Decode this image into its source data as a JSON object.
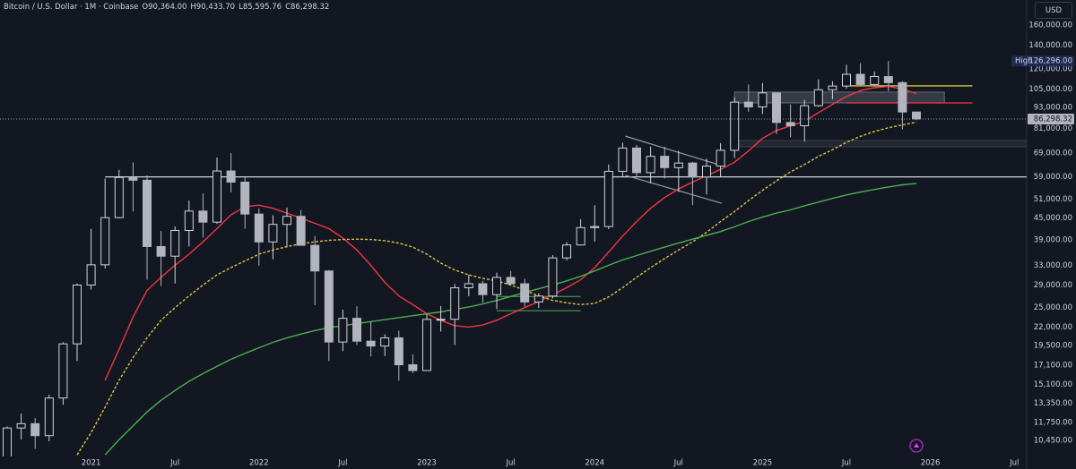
{
  "header": {
    "symbol": "Bitcoin / U.S. Dollar · 1M · Coinbase",
    "o_key": "O",
    "o": "90,364.00",
    "h_key": "H",
    "h": "90,433.70",
    "l_key": "L",
    "l": "85,595.76",
    "c_key": "C",
    "c": "86,298.32",
    "currency": "USD"
  },
  "chart_data": {
    "type": "candlestick",
    "log_scale": true,
    "grid": false,
    "categories": [
      null,
      null,
      null,
      null,
      null,
      null,
      "2021",
      null,
      null,
      null,
      null,
      null,
      "Jul",
      null,
      null,
      null,
      null,
      null,
      "2022",
      null,
      null,
      null,
      null,
      null,
      "Jul",
      null,
      null,
      null,
      null,
      null,
      "2023",
      null,
      null,
      null,
      null,
      null,
      "Jul",
      null,
      null,
      null,
      null,
      null,
      "2024",
      null,
      null,
      null,
      null,
      null,
      "Jul",
      null,
      null,
      null,
      null,
      null,
      "2025",
      null,
      null,
      null,
      null,
      null,
      "Jul",
      null,
      null,
      null,
      null,
      null,
      "2026",
      null,
      null,
      null,
      null,
      null,
      "Jul"
    ],
    "open": [
      9135,
      11335,
      11660,
      10780,
      13800,
      19700,
      28990,
      33110,
      45140,
      58790,
      57720,
      37330,
      35040,
      41490,
      47130,
      43830,
      61320,
      57000,
      46220,
      38480,
      43180,
      45530,
      37640,
      31790,
      19940,
      23300,
      20050,
      19420,
      20490,
      17170,
      16530,
      23130,
      23150,
      28470,
      29250,
      27220,
      30480,
      29230,
      25940,
      26970,
      34650,
      37720,
      42280,
      42580,
      61200,
      71330,
      60670,
      67530,
      62680,
      64620,
      58970,
      63330,
      70250,
      96400,
      93430,
      102430,
      84350,
      82550,
      94200,
      104600,
      107170,
      115760,
      108250,
      114050,
      109580,
      90364,
      null,
      null,
      null,
      null,
      null,
      null,
      null
    ],
    "high": [
      11450,
      12470,
      12090,
      14100,
      19900,
      29300,
      41950,
      58370,
      61790,
      64900,
      59600,
      41330,
      42600,
      50500,
      52920,
      67000,
      69000,
      59050,
      47990,
      45850,
      48240,
      47440,
      40020,
      31980,
      24670,
      25200,
      22800,
      20990,
      21480,
      18390,
      23960,
      25250,
      29190,
      31000,
      29820,
      31430,
      31800,
      30200,
      27490,
      35290,
      38420,
      44730,
      48970,
      64000,
      73800,
      72800,
      71980,
      71970,
      70010,
      65110,
      66500,
      73620,
      99600,
      108300,
      109350,
      102500,
      95000,
      97900,
      111980,
      110600,
      123200,
      124500,
      117900,
      126296,
      110600,
      90433.7,
      null,
      null,
      null,
      null,
      null,
      null,
      null
    ],
    "low": [
      8990,
      10520,
      9880,
      10380,
      13200,
      17600,
      28130,
      32300,
      44950,
      47000,
      30000,
      28800,
      29280,
      37330,
      39600,
      43300,
      53250,
      41950,
      32930,
      34320,
      37160,
      37570,
      25400,
      17600,
      18780,
      19550,
      18150,
      18190,
      15480,
      16260,
      16500,
      21350,
      19550,
      26950,
      25810,
      24750,
      28860,
      25170,
      24920,
      26550,
      34110,
      37620,
      38550,
      41880,
      59000,
      59100,
      56550,
      58400,
      53500,
      49000,
      52550,
      58870,
      66800,
      90500,
      89160,
      78170,
      76600,
      74420,
      93400,
      98200,
      105300,
      107300,
      107250,
      103530,
      80600,
      85595.76,
      null,
      null,
      null,
      null,
      null,
      null,
      null
    ],
    "close": [
      11335,
      11660,
      10780,
      13800,
      19700,
      28990,
      33110,
      45140,
      58790,
      57720,
      37330,
      35040,
      41490,
      47130,
      43830,
      61320,
      57000,
      46220,
      38480,
      43180,
      45530,
      37640,
      31790,
      19940,
      23300,
      20050,
      19420,
      20490,
      17170,
      16530,
      23130,
      23150,
      28470,
      29250,
      27220,
      30480,
      29230,
      25940,
      26970,
      34650,
      37720,
      42280,
      42580,
      61200,
      71330,
      60670,
      67530,
      62680,
      64620,
      58970,
      63330,
      70250,
      96400,
      93430,
      102430,
      84350,
      82550,
      94200,
      104600,
      107170,
      115760,
      108250,
      114050,
      109580,
      90364,
      86298.32,
      null,
      null,
      null,
      null,
      null,
      null,
      null
    ],
    "up_color": "#d1d4dc",
    "down_color": "#b2b5be",
    "lines": [
      {
        "color": "#f23645",
        "style": "solid",
        "values": [
          null,
          null,
          null,
          null,
          null,
          null,
          null,
          15500,
          19000,
          23500,
          28000,
          30500,
          33000,
          35500,
          38500,
          42000,
          46000,
          48500,
          49000,
          48000,
          46500,
          45000,
          43500,
          42000,
          39500,
          36500,
          33000,
          29500,
          27000,
          25500,
          24000,
          23000,
          22200,
          22000,
          22300,
          23000,
          24000,
          25000,
          26000,
          27200,
          28500,
          30000,
          32500,
          36000,
          40000,
          44000,
          48000,
          51500,
          54500,
          57000,
          59500,
          62000,
          65000,
          70000,
          76000,
          80000,
          82500,
          85000,
          90000,
          95000,
          100000,
          104000,
          106000,
          107000,
          105000,
          102000,
          null,
          null,
          null,
          null,
          null,
          null,
          null
        ]
      },
      {
        "color": "#e0c341",
        "style": "dashed",
        "values": [
          null,
          null,
          null,
          null,
          null,
          9500,
          11000,
          13000,
          15500,
          18000,
          20500,
          23000,
          25000,
          27000,
          29000,
          31000,
          32500,
          34000,
          35500,
          36500,
          37300,
          38000,
          38500,
          38900,
          39100,
          39200,
          39100,
          38800,
          38200,
          37200,
          35500,
          33500,
          32000,
          31000,
          30300,
          29800,
          29000,
          28000,
          27000,
          26200,
          25800,
          25500,
          25700,
          26800,
          28500,
          30500,
          32500,
          34500,
          36500,
          38500,
          41000,
          44000,
          47000,
          50500,
          54000,
          57500,
          61000,
          64000,
          67500,
          70500,
          74000,
          77000,
          79500,
          81500,
          83000,
          84500,
          null,
          null,
          null,
          null,
          null,
          null,
          null
        ]
      },
      {
        "color": "#4caf50",
        "style": "solid",
        "values": [
          null,
          null,
          null,
          null,
          null,
          null,
          null,
          9500,
          10500,
          11500,
          12600,
          13600,
          14500,
          15400,
          16200,
          17000,
          17800,
          18500,
          19200,
          19900,
          20500,
          21000,
          21500,
          21900,
          22200,
          22500,
          22800,
          23100,
          23400,
          23700,
          24000,
          24300,
          24700,
          25100,
          25600,
          26200,
          26900,
          27600,
          28300,
          29000,
          29800,
          30700,
          31800,
          33000,
          34200,
          35200,
          36200,
          37200,
          38200,
          39200,
          40200,
          41200,
          42500,
          44000,
          45300,
          46500,
          47500,
          48800,
          50000,
          51200,
          52400,
          53400,
          54300,
          55200,
          56000,
          56500,
          null,
          null,
          null,
          null,
          null,
          null,
          null
        ]
      }
    ],
    "levels": [
      {
        "value": 59000,
        "from": 7,
        "to": 73,
        "color": "#d1d4dc"
      },
      {
        "value": 107300,
        "from": 60,
        "to": 69,
        "color": "#ffeb3b"
      },
      {
        "value": 95900,
        "from": 60,
        "to": 69,
        "color": "#f23645"
      }
    ],
    "zones": [
      {
        "low": 95900,
        "high": 103000,
        "from": 52,
        "to": 67,
        "color": "#787b86",
        "style": "fill"
      },
      {
        "low": 71900,
        "high": 74900,
        "from": 51.7,
        "to": 73,
        "color": "#434651",
        "style": "fill"
      },
      {
        "low": 24500,
        "high": 26900,
        "from": 35,
        "to": 41,
        "color": "#4caf50",
        "style": "lines"
      }
    ],
    "segments": [
      {
        "from": 44.2,
        "to": 51.1,
        "start": 77100,
        "end": 63500,
        "color": "#9598a1"
      },
      {
        "from": 44.2,
        "to": 51.1,
        "start": 59600,
        "end": 49600,
        "color": "#9598a1"
      }
    ],
    "high_tag": {
      "text": "High",
      "label": "126,296.00"
    },
    "last_label": "86,298.32",
    "ylim": [
      9400,
      188600
    ],
    "yticks": [
      {
        "value": 160000,
        "label": "160,000.00"
      },
      {
        "value": 140000,
        "label": "140,000.00"
      },
      {
        "value": 120000,
        "label": "120,000.00"
      },
      {
        "value": 105000,
        "label": "105,000.00"
      },
      {
        "value": 93000,
        "label": "93,000.00"
      },
      {
        "value": 81000,
        "label": "81,000.00"
      },
      {
        "value": 69000,
        "label": "69,000.00"
      },
      {
        "value": 59000,
        "label": "59,000.00"
      },
      {
        "value": 51000,
        "label": "51,000.00"
      },
      {
        "value": 45000,
        "label": "45,000.00"
      },
      {
        "value": 39000,
        "label": "39,000.00"
      },
      {
        "value": 33000,
        "label": "33,000.00"
      },
      {
        "value": 29000,
        "label": "29,000.00"
      },
      {
        "value": 25000,
        "label": "25,000.00"
      },
      {
        "value": 22000,
        "label": "22,000.00"
      },
      {
        "value": 19500,
        "label": "19,500.00"
      },
      {
        "value": 17100,
        "label": "17,100.00"
      },
      {
        "value": 15100,
        "label": "15,100.00"
      },
      {
        "value": 13350,
        "label": "13,350.00"
      },
      {
        "value": 11750,
        "label": "11,750.00"
      },
      {
        "value": 10450,
        "label": "10,450.00"
      }
    ]
  }
}
